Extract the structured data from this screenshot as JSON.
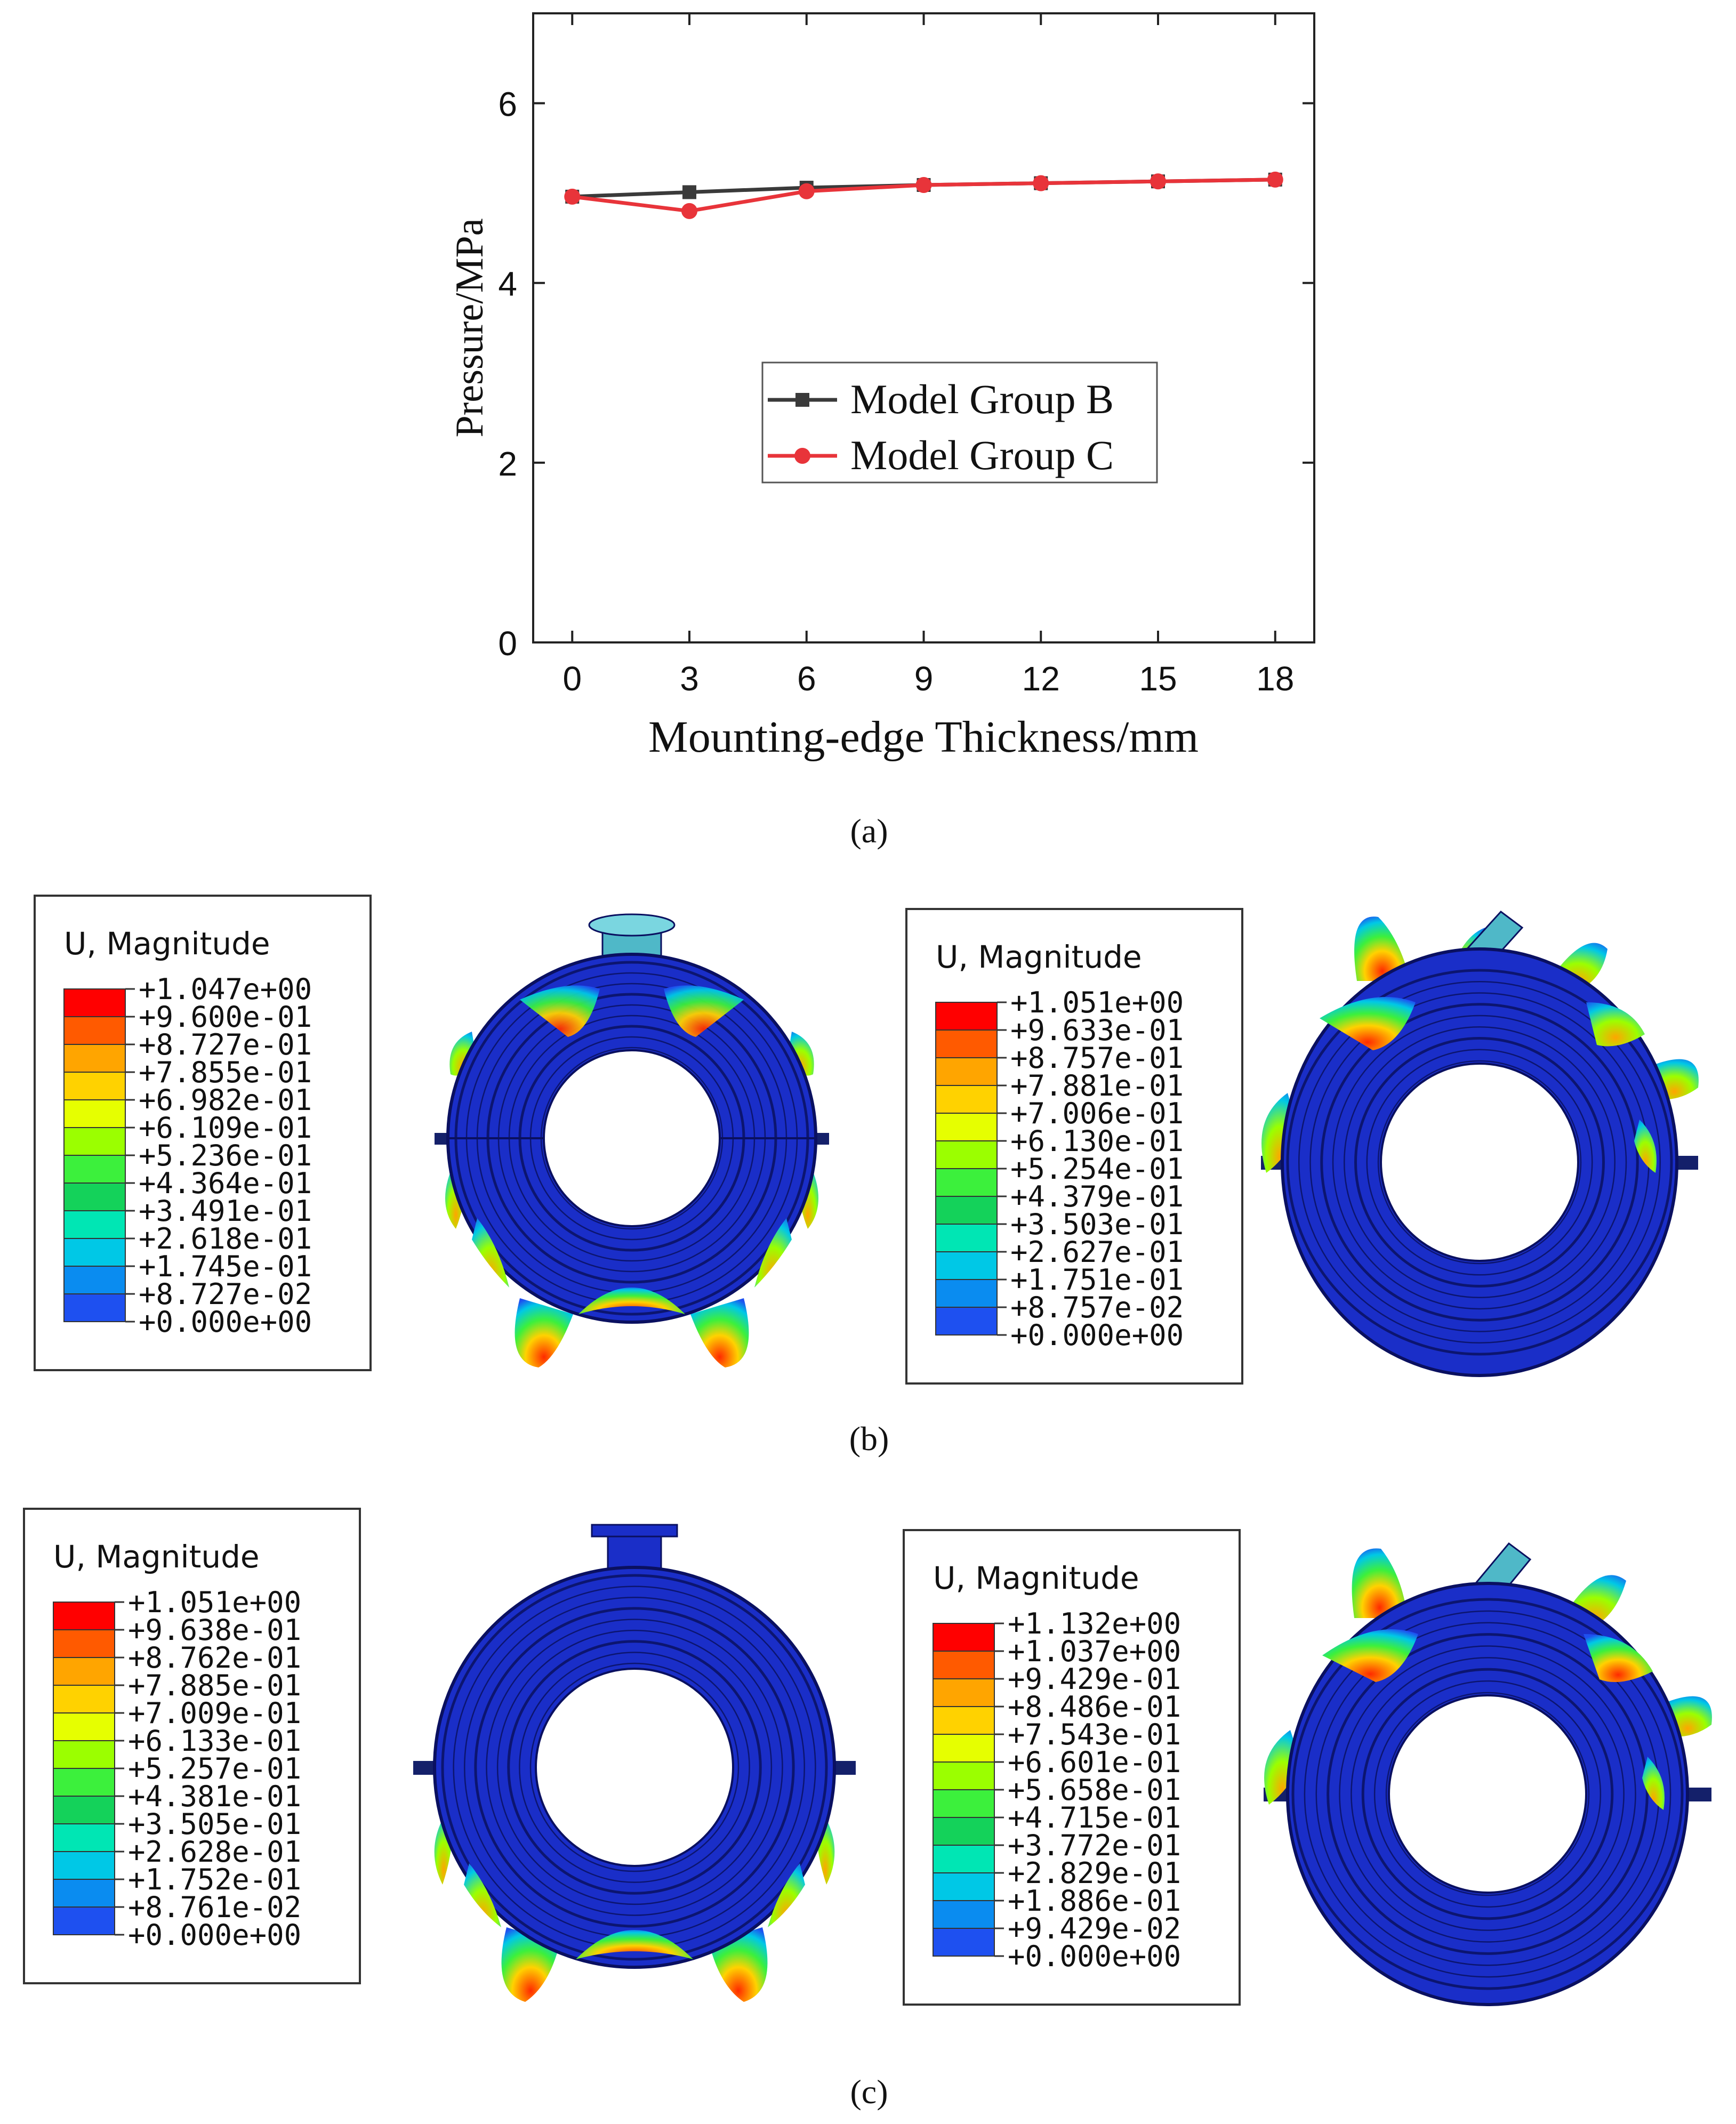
{
  "chart_data": {
    "type": "line",
    "title": "",
    "xlabel": "Mounting-edge Thickness/mm",
    "ylabel": "Pressure/MPa",
    "x": [
      0,
      3,
      6,
      9,
      12,
      15,
      18
    ],
    "xlim": [
      -1,
      19
    ],
    "ylim": [
      0,
      7
    ],
    "xticks": [
      0,
      3,
      6,
      9,
      12,
      15,
      18
    ],
    "yticks": [
      0,
      2,
      4,
      6
    ],
    "grid": false,
    "legend_position": "center-right",
    "series": [
      {
        "name": "Model Group B",
        "color": "#3a3a3a",
        "marker": "square",
        "values": [
          4.96,
          5.01,
          5.06,
          5.09,
          5.11,
          5.13,
          5.15
        ]
      },
      {
        "name": "Model Group C",
        "color": "#e8343a",
        "marker": "circle",
        "values": [
          4.96,
          4.8,
          5.02,
          5.09,
          5.11,
          5.13,
          5.15
        ]
      }
    ]
  },
  "captions": {
    "a": "(a)",
    "b": "(b)",
    "c": "(c)"
  },
  "legends": [
    {
      "title": "U, Magnitude",
      "values": [
        "+1.047e+00",
        "+9.600e-01",
        "+8.727e-01",
        "+7.855e-01",
        "+6.982e-01",
        "+6.109e-01",
        "+5.236e-01",
        "+4.364e-01",
        "+3.491e-01",
        "+2.618e-01",
        "+1.745e-01",
        "+8.727e-02",
        "+0.000e+00"
      ]
    },
    {
      "title": "U, Magnitude",
      "values": [
        "+1.051e+00",
        "+9.633e-01",
        "+8.757e-01",
        "+7.881e-01",
        "+7.006e-01",
        "+6.130e-01",
        "+5.254e-01",
        "+4.379e-01",
        "+3.503e-01",
        "+2.627e-01",
        "+1.751e-01",
        "+8.757e-02",
        "+0.000e+00"
      ]
    },
    {
      "title": "U, Magnitude",
      "values": [
        "+1.051e+00",
        "+9.638e-01",
        "+8.762e-01",
        "+7.885e-01",
        "+7.009e-01",
        "+6.133e-01",
        "+5.257e-01",
        "+4.381e-01",
        "+3.505e-01",
        "+2.628e-01",
        "+1.752e-01",
        "+8.761e-02",
        "+0.000e+00"
      ]
    },
    {
      "title": "U, Magnitude",
      "values": [
        "+1.132e+00",
        "+1.037e+00",
        "+9.429e-01",
        "+8.486e-01",
        "+7.543e-01",
        "+6.601e-01",
        "+5.658e-01",
        "+4.715e-01",
        "+3.772e-01",
        "+2.829e-01",
        "+1.886e-01",
        "+9.429e-02",
        "+0.000e+00"
      ]
    }
  ],
  "colormap": [
    "#ff0000",
    "#ff5a00",
    "#ffa500",
    "#ffd200",
    "#e6ff00",
    "#9bff00",
    "#3cf03c",
    "#14d25a",
    "#00e6b4",
    "#00c8e6",
    "#0a8cf0",
    "#1e50f0",
    "#0a0ae6"
  ],
  "colors": {
    "ring_body": "#1a2ec8",
    "ring_line": "#0a1060",
    "flange": "#14206a",
    "nozzle": "#4fb8c8"
  }
}
